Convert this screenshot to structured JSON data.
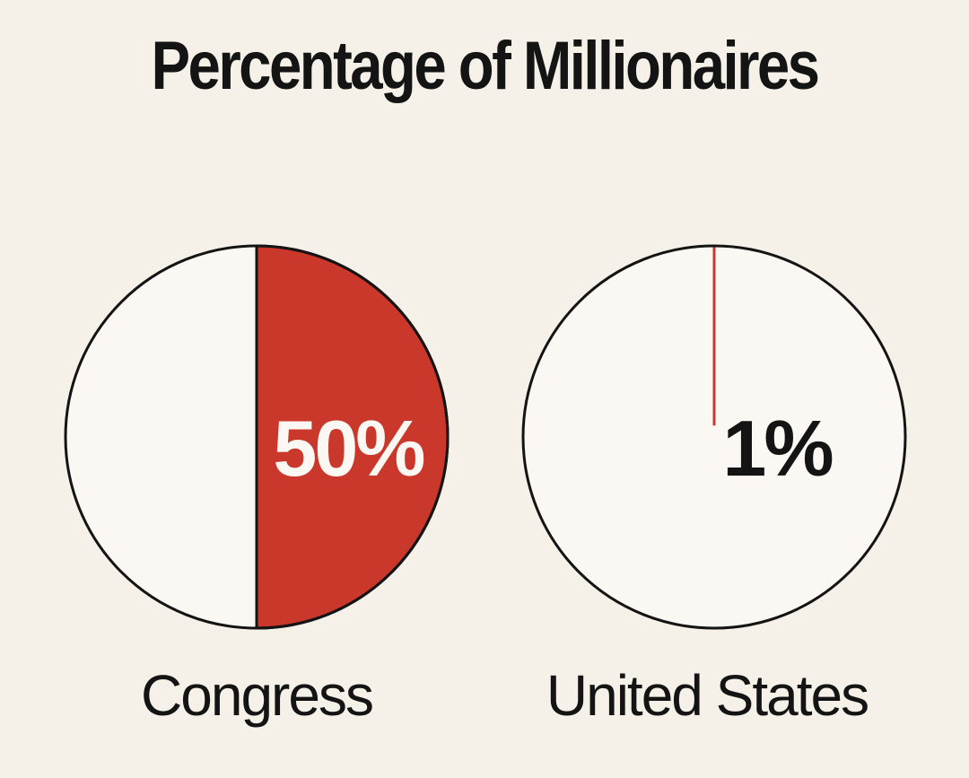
{
  "chart_data": {
    "type": "pie",
    "title": "Percentage of Millionaires",
    "series": [
      {
        "category": "Congress",
        "value": 50,
        "label": "50%"
      },
      {
        "category": "United States",
        "value": 1,
        "label": "1%"
      }
    ],
    "colors": {
      "highlight": "#c9382b",
      "remainder": "#fbf8f3",
      "outline": "#141414",
      "background": "#f6f1e8",
      "label_on_fill": "#fbf8f3",
      "label_on_empty": "#141414"
    },
    "grid": false,
    "legend": "none"
  }
}
